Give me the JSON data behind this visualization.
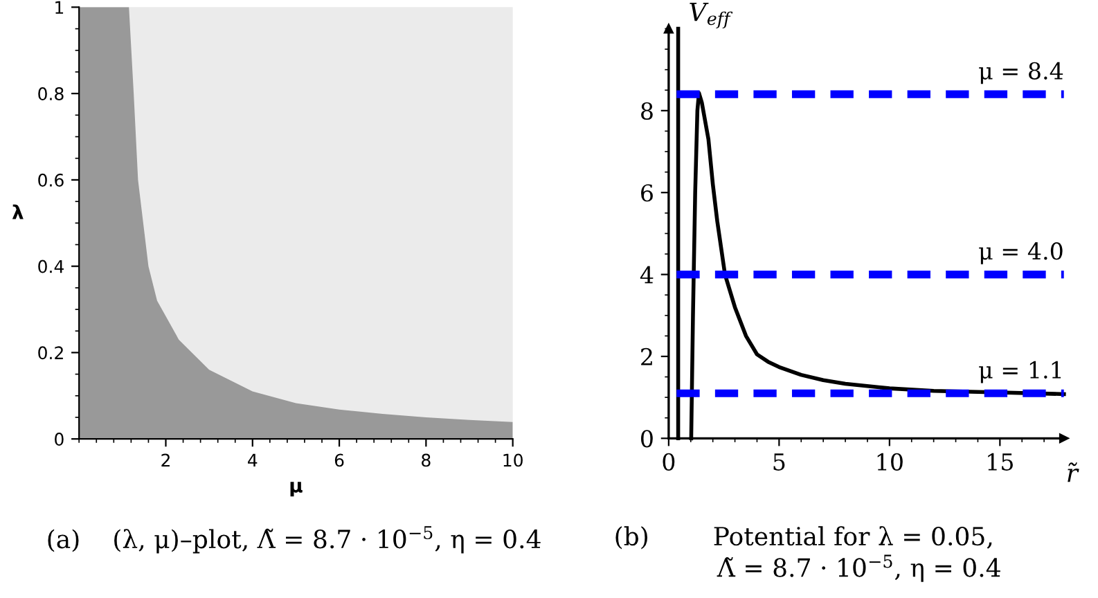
{
  "chart_data": [
    {
      "type": "area",
      "xlabel": "μ",
      "ylabel": "λ",
      "annotations": [
        "(a)    (λ, μ)–plot, Λ̃ = 8.7 · 10$^{−5}$, η = 0.4"
      ],
      "x": [
        0,
        1.15,
        1.26,
        1.36,
        1.6,
        1.8,
        2.3,
        3,
        4,
        5,
        6,
        7,
        8,
        9,
        10
      ],
      "series": [
        {
          "color": "#999999",
          "values": [
            1,
            1,
            0.8,
            0.6,
            0.4,
            0.32,
            0.23,
            0.16,
            0.11,
            0.083,
            0.068,
            0.058,
            0.05,
            0.044,
            0.039
          ]
        }
      ],
      "xlim": [
        0,
        10
      ],
      "ylim": [
        0,
        1
      ],
      "xticks": [
        2,
        4,
        6,
        8,
        10
      ],
      "yticks": [
        0,
        0.2,
        0.4,
        0.6,
        0.8,
        1
      ],
      "grid": false,
      "legend": false
    },
    {
      "type": "line",
      "xlabel": "r̃",
      "ylabel": "V$_{eff}$",
      "annotations": [
        "(b)        Potential for λ = 0.05,\n             Λ̃ = 8.7 · 10$^{−5}$, η = 0.4"
      ],
      "x": [
        0.43,
        0.43,
        0.7,
        1.02,
        1.1,
        1.2,
        1.3,
        1.37,
        1.5,
        1.8,
        2,
        2.2,
        2.55,
        3,
        3.5,
        4,
        4.5,
        5,
        6,
        7,
        8,
        10,
        12,
        15,
        17.9
      ],
      "series": [
        {
          "color": "#000000",
          "values": [
            10,
            0,
            null,
            0,
            3,
            6,
            8,
            8.43,
            8.2,
            7.3,
            6.2,
            5.3,
            4,
            3.2,
            2.5,
            2.05,
            1.87,
            1.74,
            1.55,
            1.42,
            1.33,
            1.22,
            1.16,
            1.12,
            1.08
          ]
        }
      ],
      "ref_lines": [
        {
          "axis": "y",
          "value": 8.4,
          "label": "μ = 8.4",
          "color": "#0000ff",
          "line_style": "dashed"
        },
        {
          "axis": "y",
          "value": 4.0,
          "label": "μ = 4.0",
          "color": "#0000ff",
          "line_style": "dashed"
        },
        {
          "axis": "y",
          "value": 1.1,
          "label": "μ = 1.1",
          "color": "#0000ff",
          "line_style": "dashed"
        }
      ],
      "xlim": [
        0,
        17.9
      ],
      "ylim": [
        0,
        10
      ],
      "xticks": [
        0,
        5,
        10,
        15
      ],
      "yticks": [
        0,
        2,
        4,
        6,
        8
      ],
      "grid": false,
      "legend": false,
      "marker": "none",
      "line_style": "solid"
    }
  ]
}
